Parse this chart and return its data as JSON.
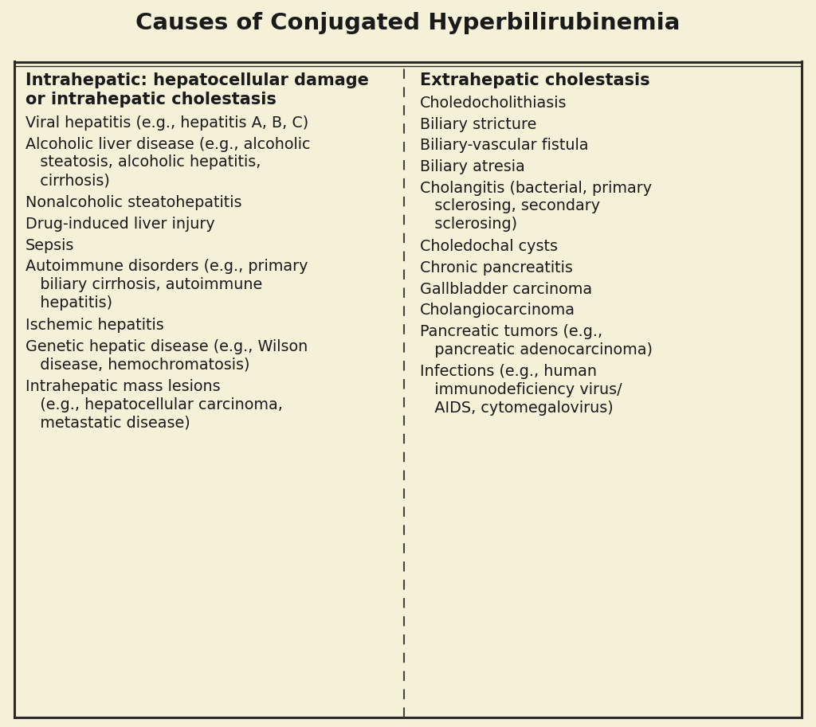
{
  "title": "Causes of Conjugated Hyperbilirubinemia",
  "background_color": "#f5f0d8",
  "title_fontsize": 21,
  "title_fontweight": "bold",
  "text_color": "#1a1a1a",
  "left_header": "Intrahepatic: hepatocellular damage\nor intrahepatic cholestasis",
  "right_header": "Extrahepatic cholestasis",
  "left_items": [
    "Viral hepatitis (e.g., hepatitis A, B, C)",
    "Alcoholic liver disease (e.g., alcoholic\n   steatosis, alcoholic hepatitis,\n   cirrhosis)",
    "Nonalcoholic steatohepatitis",
    "Drug-induced liver injury",
    "Sepsis",
    "Autoimmune disorders (e.g., primary\n   biliary cirrhosis, autoimmune\n   hepatitis)",
    "Ischemic hepatitis",
    "Genetic hepatic disease (e.g., Wilson\n   disease, hemochromatosis)",
    "Intrahepatic mass lesions\n   (e.g., hepatocellular carcinoma,\n   metastatic disease)"
  ],
  "right_items": [
    "Choledocholithiasis",
    "Biliary stricture",
    "Biliary-vascular fistula",
    "Biliary atresia",
    "Cholangitis (bacterial, primary\n   sclerosing, secondary\n   sclerosing)",
    "Choledochal cysts",
    "Chronic pancreatitis",
    "Gallbladder carcinoma",
    "Cholangiocarcinoma",
    "Pancreatic tumors (e.g.,\n   pancreatic adenocarcinoma)",
    "Infections (e.g., human\n   immunodeficiency virus/\n   AIDS, cytomegalovirus)"
  ],
  "border_color": "#2a2a2a",
  "divider_color": "#2a2a2a",
  "dashed_color": "#444444",
  "header_fontsize": 15,
  "item_fontsize": 13.8,
  "fig_width": 10.24,
  "fig_height": 9.13,
  "dpi": 100
}
